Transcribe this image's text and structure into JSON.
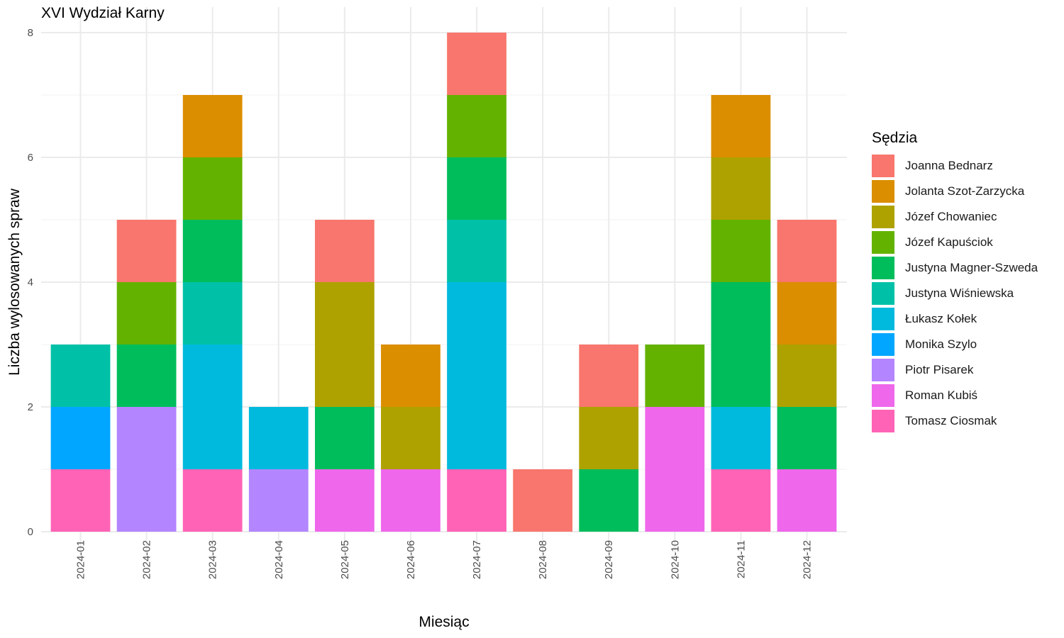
{
  "chart_data": {
    "type": "bar",
    "stacked": true,
    "title": "XVI Wydział Karny",
    "xlabel": "Miesiąc",
    "ylabel": "Liczba wylosowanych spraw",
    "ylim": [
      0,
      8
    ],
    "yticks": [
      0,
      2,
      4,
      6,
      8
    ],
    "grid": true,
    "legend_title": "Sędzia",
    "legend_position": "right",
    "categories": [
      "2024-01",
      "2024-02",
      "2024-03",
      "2024-04",
      "2024-05",
      "2024-06",
      "2024-07",
      "2024-08",
      "2024-09",
      "2024-10",
      "2024-11",
      "2024-12"
    ],
    "series": [
      {
        "name": "Joanna Bednarz",
        "color": "#F8766D",
        "values": [
          0,
          1,
          0,
          0,
          1,
          0,
          1,
          1,
          1,
          0,
          0,
          1
        ]
      },
      {
        "name": "Jolanta Szot-Zarzycka",
        "color": "#DB8E00",
        "values": [
          0,
          0,
          1,
          0,
          0,
          1,
          0,
          0,
          0,
          0,
          1,
          1
        ]
      },
      {
        "name": "Józef Chowaniec",
        "color": "#AEA200",
        "values": [
          0,
          0,
          0,
          0,
          2,
          1,
          0,
          0,
          1,
          0,
          1,
          1
        ]
      },
      {
        "name": "Józef Kapuściok",
        "color": "#64B200",
        "values": [
          0,
          1,
          1,
          0,
          0,
          0,
          1,
          0,
          0,
          1,
          1,
          0
        ]
      },
      {
        "name": "Justyna Magner-Szweda",
        "color": "#00BD5C",
        "values": [
          0,
          1,
          1,
          0,
          1,
          0,
          1,
          0,
          1,
          0,
          2,
          1
        ]
      },
      {
        "name": "Justyna Wiśniewska",
        "color": "#00C1A7",
        "values": [
          1,
          0,
          1,
          0,
          0,
          0,
          1,
          0,
          0,
          0,
          0,
          0
        ]
      },
      {
        "name": "Łukasz Kołek",
        "color": "#00BADE",
        "values": [
          0,
          0,
          2,
          1,
          0,
          0,
          3,
          0,
          0,
          0,
          1,
          0
        ]
      },
      {
        "name": "Monika Szylo",
        "color": "#00A6FF",
        "values": [
          1,
          0,
          0,
          0,
          0,
          0,
          0,
          0,
          0,
          0,
          0,
          0
        ]
      },
      {
        "name": "Piotr Pisarek",
        "color": "#B385FF",
        "values": [
          0,
          2,
          0,
          1,
          0,
          0,
          0,
          0,
          0,
          0,
          0,
          0
        ]
      },
      {
        "name": "Roman Kubiś",
        "color": "#EF67EB",
        "values": [
          0,
          0,
          0,
          0,
          1,
          1,
          0,
          0,
          0,
          2,
          0,
          1
        ]
      },
      {
        "name": "Tomasz Ciosmak",
        "color": "#FF63B6",
        "values": [
          1,
          0,
          1,
          0,
          0,
          0,
          1,
          0,
          0,
          0,
          1,
          0
        ]
      }
    ]
  }
}
